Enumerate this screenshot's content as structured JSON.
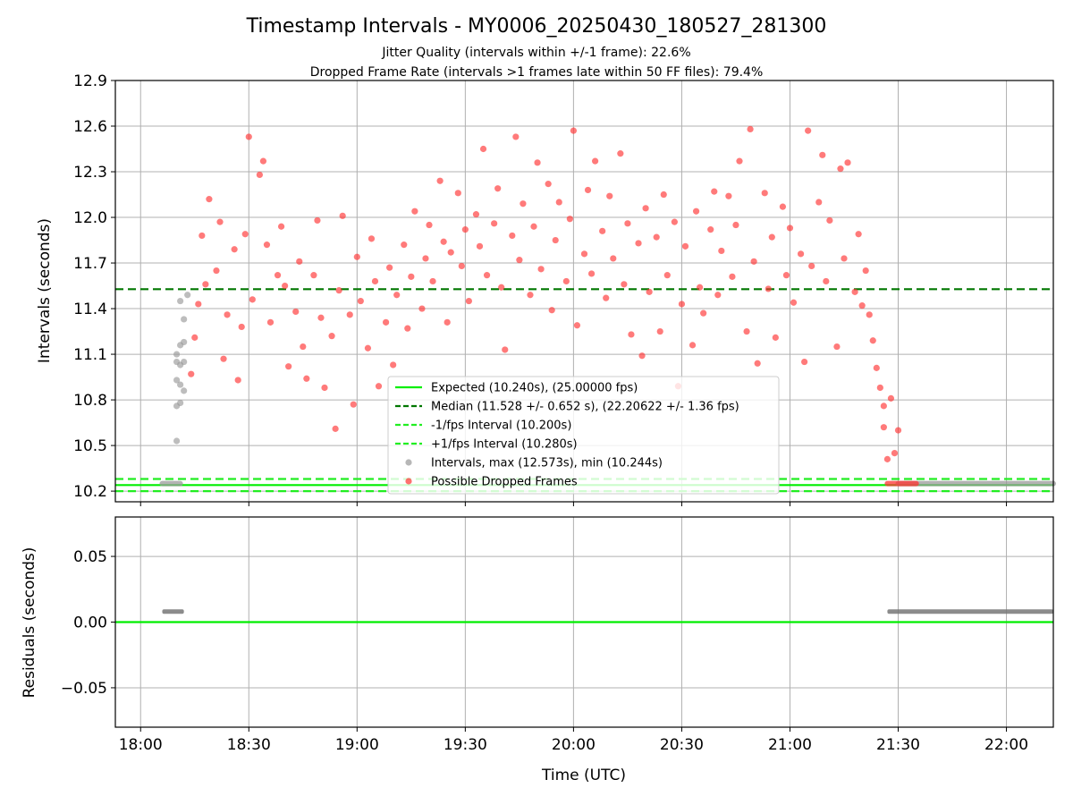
{
  "title": "Timestamp Intervals - MY0006_20250430_180527_281300",
  "subtitle1": "Jitter Quality (intervals within +/-1 frame): 22.6%",
  "subtitle2": "Dropped Frame Rate (intervals >1 frames late within 50 FF files): 79.4%",
  "colors": {
    "expected": "#00ee00",
    "median": "#007700",
    "interval": "#22ee22",
    "normal_points": "#999999",
    "dropped_points": "#ff3333",
    "residual_points": "#777777",
    "grid": "#b0b0b0"
  },
  "chart_data": [
    {
      "type": "scatter",
      "panel": "top",
      "ylabel": "Intervals (seconds)",
      "ylim": [
        10.13,
        12.9
      ],
      "xlim": [
        "17:53",
        "22:13"
      ],
      "yticks": [
        "10.2",
        "10.5",
        "10.8",
        "11.1",
        "11.4",
        "11.7",
        "12.0",
        "12.3",
        "12.6",
        "12.9"
      ],
      "yvalues": [
        10.2,
        10.5,
        10.8,
        11.1,
        11.4,
        11.7,
        12.0,
        12.3,
        12.6,
        12.9
      ],
      "grid": true,
      "legend_position": "lower-center",
      "lines": [
        {
          "name": "Expected (10.240s), (25.00000 fps)",
          "y": 10.24,
          "style": "solid",
          "color": "#00ee00"
        },
        {
          "name": "Median (11.528 +/- 0.652 s), (22.20622 +/- 1.36 fps)",
          "y": 11.528,
          "style": "dashed",
          "color": "#007700"
        },
        {
          "name": "-1/fps Interval (10.200s)",
          "y": 10.2,
          "style": "dashed",
          "color": "#22ee22"
        },
        {
          "name": "+1/fps Interval (10.280s)",
          "y": 10.28,
          "style": "dashed",
          "color": "#22ee22"
        }
      ],
      "series": [
        {
          "name": "Intervals, max (12.573s), min (10.244s)",
          "color": "#999999",
          "segments": [
            {
              "x_start": "18:06",
              "x_end": "18:11",
              "y": 10.25
            },
            {
              "x_start": "21:30",
              "x_end": "22:13",
              "y": 10.25
            }
          ],
          "points": [
            {
              "x": "18:10",
              "y": 10.53
            },
            {
              "x": "18:10",
              "y": 10.76
            },
            {
              "x": "18:11",
              "y": 10.78
            },
            {
              "x": "18:10",
              "y": 10.93
            },
            {
              "x": "18:11",
              "y": 10.9
            },
            {
              "x": "18:12",
              "y": 10.86
            },
            {
              "x": "18:10",
              "y": 11.05
            },
            {
              "x": "18:11",
              "y": 11.03
            },
            {
              "x": "18:12",
              "y": 11.05
            },
            {
              "x": "18:10",
              "y": 11.1
            },
            {
              "x": "18:11",
              "y": 11.16
            },
            {
              "x": "18:12",
              "y": 11.18
            },
            {
              "x": "18:12",
              "y": 11.33
            },
            {
              "x": "18:11",
              "y": 11.45
            },
            {
              "x": "18:13",
              "y": 11.49
            }
          ]
        },
        {
          "name": "Possible Dropped Frames",
          "color": "#ff3333",
          "segments": [
            {
              "x_start": "21:27",
              "x_end": "21:35",
              "y": 10.25
            }
          ],
          "points": [
            {
              "x": "18:14",
              "y": 10.97
            },
            {
              "x": "18:15",
              "y": 11.21
            },
            {
              "x": "18:16",
              "y": 11.43
            },
            {
              "x": "18:17",
              "y": 11.88
            },
            {
              "x": "18:18",
              "y": 11.56
            },
            {
              "x": "18:19",
              "y": 12.12
            },
            {
              "x": "18:21",
              "y": 11.65
            },
            {
              "x": "18:22",
              "y": 11.97
            },
            {
              "x": "18:23",
              "y": 11.07
            },
            {
              "x": "18:24",
              "y": 11.36
            },
            {
              "x": "18:26",
              "y": 11.79
            },
            {
              "x": "18:27",
              "y": 10.93
            },
            {
              "x": "18:28",
              "y": 11.28
            },
            {
              "x": "18:29",
              "y": 11.89
            },
            {
              "x": "18:30",
              "y": 12.53
            },
            {
              "x": "18:31",
              "y": 11.46
            },
            {
              "x": "18:33",
              "y": 12.28
            },
            {
              "x": "18:34",
              "y": 12.37
            },
            {
              "x": "18:35",
              "y": 11.82
            },
            {
              "x": "18:36",
              "y": 11.31
            },
            {
              "x": "18:38",
              "y": 11.62
            },
            {
              "x": "18:39",
              "y": 11.94
            },
            {
              "x": "18:40",
              "y": 11.55
            },
            {
              "x": "18:41",
              "y": 11.02
            },
            {
              "x": "18:43",
              "y": 11.38
            },
            {
              "x": "18:44",
              "y": 11.71
            },
            {
              "x": "18:45",
              "y": 11.15
            },
            {
              "x": "18:46",
              "y": 10.94
            },
            {
              "x": "18:48",
              "y": 11.62
            },
            {
              "x": "18:49",
              "y": 11.98
            },
            {
              "x": "18:50",
              "y": 11.34
            },
            {
              "x": "18:51",
              "y": 10.88
            },
            {
              "x": "18:53",
              "y": 11.22
            },
            {
              "x": "18:54",
              "y": 10.61
            },
            {
              "x": "18:55",
              "y": 11.52
            },
            {
              "x": "18:56",
              "y": 12.01
            },
            {
              "x": "18:58",
              "y": 11.36
            },
            {
              "x": "18:59",
              "y": 10.77
            },
            {
              "x": "19:00",
              "y": 11.74
            },
            {
              "x": "19:01",
              "y": 11.45
            },
            {
              "x": "19:03",
              "y": 11.14
            },
            {
              "x": "19:04",
              "y": 11.86
            },
            {
              "x": "19:05",
              "y": 11.58
            },
            {
              "x": "19:06",
              "y": 10.89
            },
            {
              "x": "19:08",
              "y": 11.31
            },
            {
              "x": "19:09",
              "y": 11.67
            },
            {
              "x": "19:10",
              "y": 11.03
            },
            {
              "x": "19:11",
              "y": 11.49
            },
            {
              "x": "19:13",
              "y": 11.82
            },
            {
              "x": "19:14",
              "y": 11.27
            },
            {
              "x": "19:15",
              "y": 11.61
            },
            {
              "x": "19:16",
              "y": 12.04
            },
            {
              "x": "19:18",
              "y": 11.4
            },
            {
              "x": "19:19",
              "y": 11.73
            },
            {
              "x": "19:20",
              "y": 11.95
            },
            {
              "x": "19:21",
              "y": 11.58
            },
            {
              "x": "19:23",
              "y": 12.24
            },
            {
              "x": "19:24",
              "y": 11.84
            },
            {
              "x": "19:25",
              "y": 11.31
            },
            {
              "x": "19:26",
              "y": 11.77
            },
            {
              "x": "19:28",
              "y": 12.16
            },
            {
              "x": "19:29",
              "y": 11.68
            },
            {
              "x": "19:30",
              "y": 11.92
            },
            {
              "x": "19:31",
              "y": 11.45
            },
            {
              "x": "19:33",
              "y": 12.02
            },
            {
              "x": "19:34",
              "y": 11.81
            },
            {
              "x": "19:35",
              "y": 12.45
            },
            {
              "x": "19:36",
              "y": 11.62
            },
            {
              "x": "19:38",
              "y": 11.96
            },
            {
              "x": "19:39",
              "y": 12.19
            },
            {
              "x": "19:40",
              "y": 11.54
            },
            {
              "x": "19:41",
              "y": 11.13
            },
            {
              "x": "19:43",
              "y": 11.88
            },
            {
              "x": "19:44",
              "y": 12.53
            },
            {
              "x": "19:45",
              "y": 11.72
            },
            {
              "x": "19:46",
              "y": 12.09
            },
            {
              "x": "19:48",
              "y": 11.49
            },
            {
              "x": "19:49",
              "y": 11.94
            },
            {
              "x": "19:50",
              "y": 12.36
            },
            {
              "x": "19:51",
              "y": 11.66
            },
            {
              "x": "19:53",
              "y": 12.22
            },
            {
              "x": "19:54",
              "y": 11.39
            },
            {
              "x": "19:55",
              "y": 11.85
            },
            {
              "x": "19:56",
              "y": 12.1
            },
            {
              "x": "19:58",
              "y": 11.58
            },
            {
              "x": "19:59",
              "y": 11.99
            },
            {
              "x": "20:00",
              "y": 12.57
            },
            {
              "x": "20:01",
              "y": 11.29
            },
            {
              "x": "20:03",
              "y": 11.76
            },
            {
              "x": "20:04",
              "y": 12.18
            },
            {
              "x": "20:05",
              "y": 11.63
            },
            {
              "x": "20:06",
              "y": 12.37
            },
            {
              "x": "20:08",
              "y": 11.91
            },
            {
              "x": "20:09",
              "y": 11.47
            },
            {
              "x": "20:10",
              "y": 12.14
            },
            {
              "x": "20:11",
              "y": 11.73
            },
            {
              "x": "20:13",
              "y": 12.42
            },
            {
              "x": "20:14",
              "y": 11.56
            },
            {
              "x": "20:15",
              "y": 11.96
            },
            {
              "x": "20:16",
              "y": 11.23
            },
            {
              "x": "20:18",
              "y": 11.83
            },
            {
              "x": "20:19",
              "y": 11.09
            },
            {
              "x": "20:20",
              "y": 12.06
            },
            {
              "x": "20:21",
              "y": 11.51
            },
            {
              "x": "20:23",
              "y": 11.87
            },
            {
              "x": "20:24",
              "y": 11.25
            },
            {
              "x": "20:25",
              "y": 12.15
            },
            {
              "x": "20:26",
              "y": 11.62
            },
            {
              "x": "20:28",
              "y": 11.97
            },
            {
              "x": "20:29",
              "y": 10.89
            },
            {
              "x": "20:30",
              "y": 11.43
            },
            {
              "x": "20:31",
              "y": 11.81
            },
            {
              "x": "20:33",
              "y": 11.16
            },
            {
              "x": "20:34",
              "y": 12.04
            },
            {
              "x": "20:35",
              "y": 11.54
            },
            {
              "x": "20:36",
              "y": 11.37
            },
            {
              "x": "20:38",
              "y": 11.92
            },
            {
              "x": "20:39",
              "y": 12.17
            },
            {
              "x": "20:40",
              "y": 11.49
            },
            {
              "x": "20:41",
              "y": 11.78
            },
            {
              "x": "20:43",
              "y": 12.14
            },
            {
              "x": "20:44",
              "y": 11.61
            },
            {
              "x": "20:45",
              "y": 11.95
            },
            {
              "x": "20:46",
              "y": 12.37
            },
            {
              "x": "20:48",
              "y": 11.25
            },
            {
              "x": "20:49",
              "y": 12.58
            },
            {
              "x": "20:50",
              "y": 11.71
            },
            {
              "x": "20:51",
              "y": 11.04
            },
            {
              "x": "20:53",
              "y": 12.16
            },
            {
              "x": "20:54",
              "y": 11.53
            },
            {
              "x": "20:55",
              "y": 11.87
            },
            {
              "x": "20:56",
              "y": 11.21
            },
            {
              "x": "20:58",
              "y": 12.07
            },
            {
              "x": "20:59",
              "y": 11.62
            },
            {
              "x": "21:00",
              "y": 11.93
            },
            {
              "x": "21:01",
              "y": 11.44
            },
            {
              "x": "21:03",
              "y": 11.76
            },
            {
              "x": "21:04",
              "y": 11.05
            },
            {
              "x": "21:05",
              "y": 12.57
            },
            {
              "x": "21:06",
              "y": 11.68
            },
            {
              "x": "21:08",
              "y": 12.1
            },
            {
              "x": "21:09",
              "y": 12.41
            },
            {
              "x": "21:10",
              "y": 11.58
            },
            {
              "x": "21:11",
              "y": 11.98
            },
            {
              "x": "21:13",
              "y": 11.15
            },
            {
              "x": "21:14",
              "y": 12.32
            },
            {
              "x": "21:15",
              "y": 11.73
            },
            {
              "x": "21:16",
              "y": 12.36
            },
            {
              "x": "21:18",
              "y": 11.51
            },
            {
              "x": "21:19",
              "y": 11.89
            },
            {
              "x": "21:20",
              "y": 11.42
            },
            {
              "x": "21:21",
              "y": 11.65
            },
            {
              "x": "21:22",
              "y": 11.36
            },
            {
              "x": "21:23",
              "y": 11.19
            },
            {
              "x": "21:24",
              "y": 11.01
            },
            {
              "x": "21:25",
              "y": 10.88
            },
            {
              "x": "21:26",
              "y": 10.76
            },
            {
              "x": "21:26",
              "y": 10.62
            },
            {
              "x": "21:27",
              "y": 10.41
            },
            {
              "x": "21:28",
              "y": 10.81
            },
            {
              "x": "21:29",
              "y": 10.45
            },
            {
              "x": "21:30",
              "y": 10.6
            }
          ]
        }
      ]
    },
    {
      "type": "scatter",
      "panel": "bottom",
      "xlabel": "Time (UTC)",
      "ylabel": "Residuals (seconds)",
      "ylim": [
        -0.08,
        0.08
      ],
      "xlim": [
        "17:53",
        "22:13"
      ],
      "yticks": [
        "0.05",
        "0.00",
        "−0.05"
      ],
      "yvalues": [
        0.05,
        0.0,
        -0.05
      ],
      "xticks": [
        "18:00",
        "18:30",
        "19:00",
        "19:30",
        "20:00",
        "20:30",
        "21:00",
        "21:30",
        "22:00"
      ],
      "grid": true,
      "lines": [
        {
          "y": 0.0,
          "style": "solid",
          "color": "#00ee00"
        }
      ],
      "series": [
        {
          "color": "#777777",
          "segments": [
            {
              "x_start": "18:06",
              "x_end": "18:12",
              "y": 0.008
            },
            {
              "x_start": "21:27",
              "x_end": "22:13",
              "y": 0.008
            }
          ]
        }
      ]
    }
  ]
}
